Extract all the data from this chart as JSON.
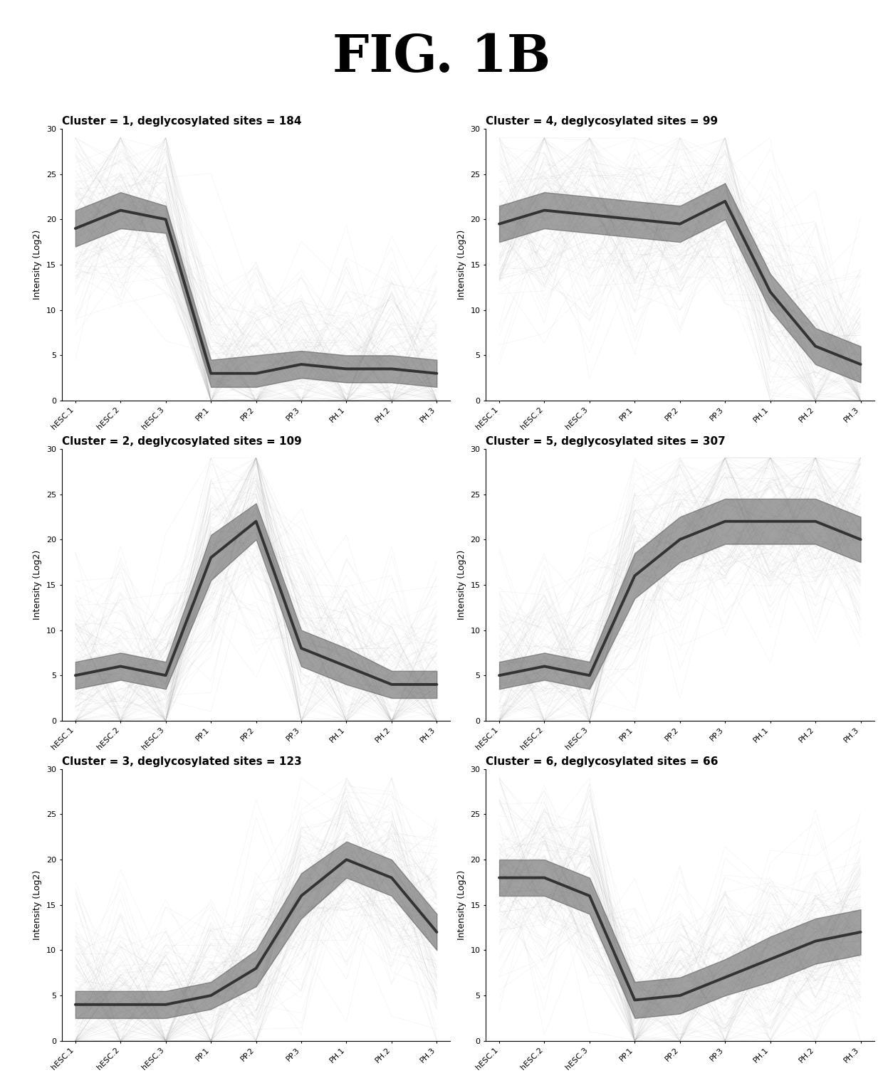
{
  "title": "FIG. 1B",
  "clusters": [
    {
      "title": "Cluster = 1, deglycosylated sites = 184",
      "mean_line": [
        19.0,
        21.0,
        20.0,
        3.0,
        3.0,
        4.0,
        3.5,
        3.5,
        3.0
      ],
      "band_upper": [
        21.0,
        23.0,
        21.5,
        4.5,
        5.0,
        5.5,
        5.0,
        5.0,
        4.5
      ],
      "band_lower": [
        17.0,
        19.0,
        18.5,
        1.5,
        1.5,
        2.5,
        2.0,
        2.0,
        1.5
      ]
    },
    {
      "title": "Cluster = 2, deglycosylated sites = 109",
      "mean_line": [
        5.0,
        6.0,
        5.0,
        18.0,
        22.0,
        8.0,
        6.0,
        4.0,
        4.0
      ],
      "band_upper": [
        6.5,
        7.5,
        6.5,
        20.5,
        24.0,
        10.0,
        8.0,
        5.5,
        5.5
      ],
      "band_lower": [
        3.5,
        4.5,
        3.5,
        15.5,
        20.0,
        6.0,
        4.0,
        2.5,
        2.5
      ]
    },
    {
      "title": "Cluster = 3, deglycosylated sites = 123",
      "mean_line": [
        4.0,
        4.0,
        4.0,
        5.0,
        8.0,
        16.0,
        20.0,
        18.0,
        12.0
      ],
      "band_upper": [
        5.5,
        5.5,
        5.5,
        6.5,
        10.0,
        18.5,
        22.0,
        20.0,
        14.0
      ],
      "band_lower": [
        2.5,
        2.5,
        2.5,
        3.5,
        6.0,
        13.5,
        18.0,
        16.0,
        10.0
      ]
    },
    {
      "title": "Cluster = 4, deglycosylated sites = 99",
      "mean_line": [
        19.5,
        21.0,
        20.5,
        20.0,
        19.5,
        22.0,
        12.0,
        6.0,
        4.0
      ],
      "band_upper": [
        21.5,
        23.0,
        22.5,
        22.0,
        21.5,
        24.0,
        14.0,
        8.0,
        6.0
      ],
      "band_lower": [
        17.5,
        19.0,
        18.5,
        18.0,
        17.5,
        20.0,
        10.0,
        4.0,
        2.0
      ]
    },
    {
      "title": "Cluster = 5, deglycosylated sites = 307",
      "mean_line": [
        5.0,
        6.0,
        5.0,
        16.0,
        20.0,
        22.0,
        22.0,
        22.0,
        20.0
      ],
      "band_upper": [
        6.5,
        7.5,
        6.5,
        18.5,
        22.5,
        24.5,
        24.5,
        24.5,
        22.5
      ],
      "band_lower": [
        3.5,
        4.5,
        3.5,
        13.5,
        17.5,
        19.5,
        19.5,
        19.5,
        17.5
      ]
    },
    {
      "title": "Cluster = 6, deglycosylated sites = 66",
      "mean_line": [
        18.0,
        18.0,
        16.0,
        4.5,
        5.0,
        7.0,
        9.0,
        11.0,
        12.0
      ],
      "band_upper": [
        20.0,
        20.0,
        18.0,
        6.5,
        7.0,
        9.0,
        11.5,
        13.5,
        14.5
      ],
      "band_lower": [
        16.0,
        16.0,
        14.0,
        2.5,
        3.0,
        5.0,
        6.5,
        8.5,
        9.5
      ]
    }
  ],
  "x_labels": [
    "hESC.1",
    "hESC.2",
    "hESC.3",
    "PP.1",
    "PP.2",
    "PP.3",
    "PH.1",
    "PH.2",
    "PH.3"
  ],
  "ylim": [
    0,
    30
  ],
  "yticks": [
    0,
    5,
    10,
    15,
    20,
    25,
    30
  ],
  "ylabel": "Intensity (Log2)",
  "mean_color": "#333333",
  "band_color": "#555555",
  "bg_line_color": "#aaaaaa",
  "band_alpha": 0.55,
  "bg_alpha": 0.18,
  "mean_lw": 2.8,
  "title_fontsize": 52,
  "subplot_title_fontsize": 11,
  "axis_label_fontsize": 9,
  "tick_fontsize": 8,
  "n_bg_lines": 120
}
